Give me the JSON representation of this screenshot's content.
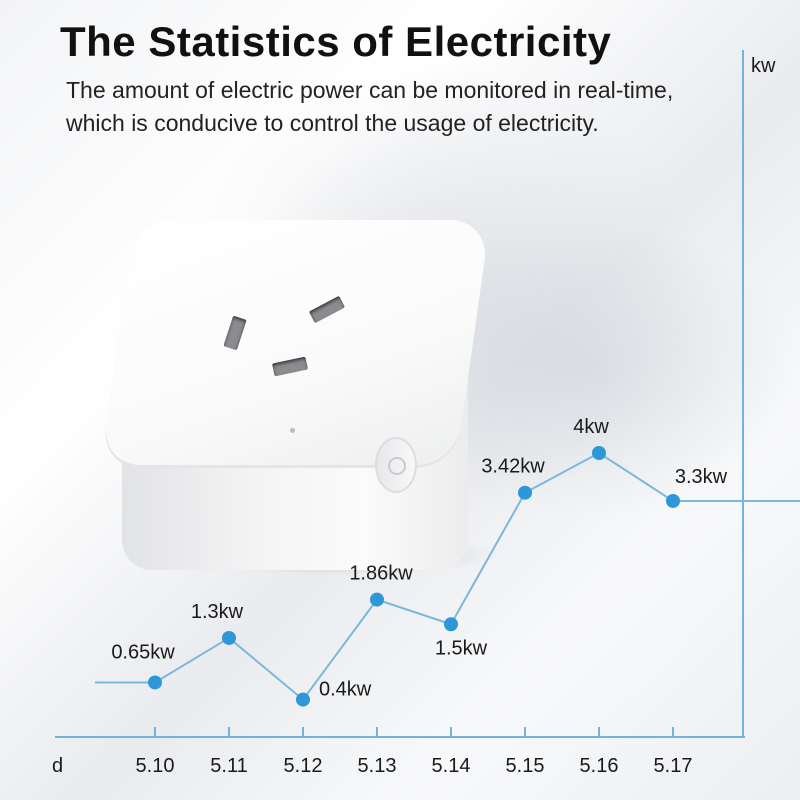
{
  "page": {
    "title": "The Statistics of Electricity",
    "subtitle_line1": "The amount of electric power can be monitored in real-time,",
    "subtitle_line2": "which is conducive to control the usage of electricity."
  },
  "colors": {
    "line": "#7ab8dc",
    "marker": "#2e97d8",
    "axis": "#6fb3e0",
    "text": "#1a1a1a"
  },
  "chart_data": {
    "type": "line",
    "title": "The Statistics of Electricity",
    "xlabel": "d",
    "ylabel": "kw",
    "categories": [
      "5.10",
      "5.11",
      "5.12",
      "5.13",
      "5.14",
      "5.15",
      "5.16",
      "5.17"
    ],
    "series": [
      {
        "values": [
          0.65,
          1.3,
          0.4,
          1.86,
          1.5,
          3.42,
          4,
          3.3
        ],
        "labels": [
          "0.65kw",
          "1.3kw",
          "0.4kw",
          "1.86kw",
          "1.5kw",
          "3.42kw",
          "4kw",
          "3.3kw"
        ]
      }
    ],
    "grid": false,
    "legend": "none"
  }
}
